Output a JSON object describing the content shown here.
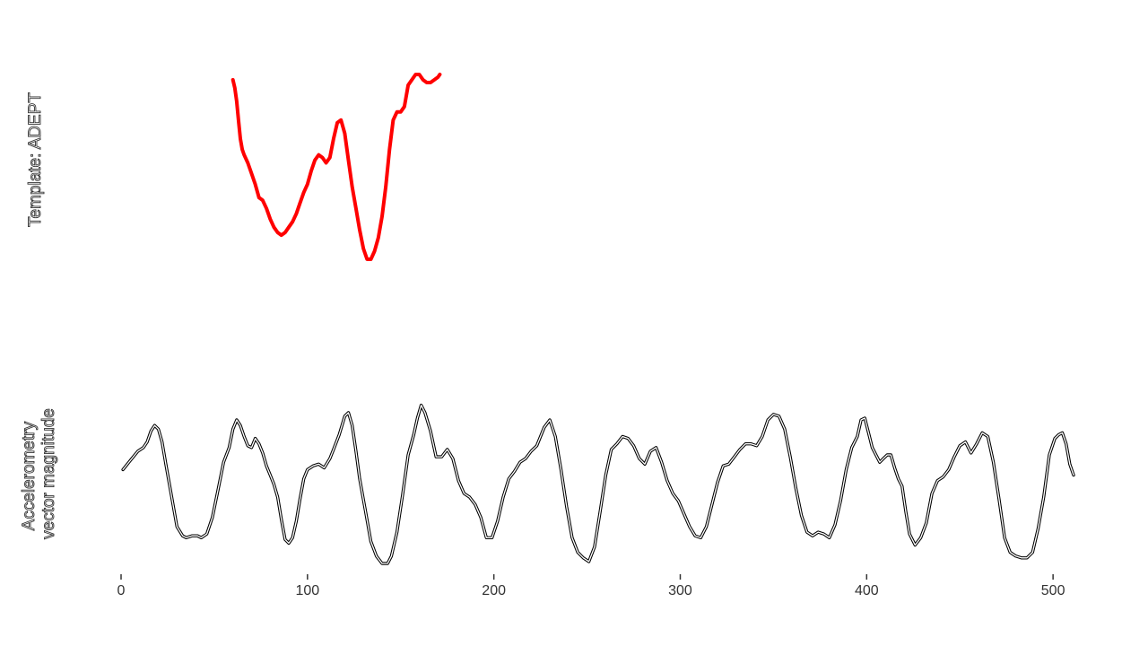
{
  "chart_data": [
    {
      "type": "line",
      "ylabel": "Template: ADEPT",
      "color": "#ff0000",
      "x": [
        60,
        61,
        62,
        63,
        64,
        65,
        66,
        68,
        70,
        72,
        74,
        76,
        78,
        80,
        82,
        84,
        86,
        88,
        90,
        92,
        94,
        96,
        98,
        100,
        102,
        104,
        106,
        108,
        110,
        112,
        114,
        116,
        118,
        120,
        122,
        124,
        126,
        128,
        130,
        132,
        134,
        136,
        138,
        140,
        142,
        144,
        146,
        148,
        150,
        152,
        154,
        156,
        158,
        160,
        162,
        164,
        166,
        168,
        170,
        171
      ],
      "y": [
        1.0,
        0.97,
        0.92,
        0.85,
        0.78,
        0.74,
        0.72,
        0.69,
        0.65,
        0.61,
        0.56,
        0.55,
        0.52,
        0.48,
        0.45,
        0.43,
        0.42,
        0.43,
        0.45,
        0.47,
        0.5,
        0.54,
        0.58,
        0.61,
        0.66,
        0.7,
        0.72,
        0.71,
        0.69,
        0.71,
        0.78,
        0.84,
        0.85,
        0.8,
        0.7,
        0.6,
        0.52,
        0.44,
        0.37,
        0.33,
        0.33,
        0.36,
        0.41,
        0.49,
        0.6,
        0.74,
        0.85,
        0.88,
        0.88,
        0.9,
        0.98,
        1.0,
        1.02,
        1.02,
        1.0,
        0.99,
        0.99,
        1.0,
        1.01,
        1.02
      ]
    },
    {
      "type": "line",
      "ylabel": "Accelerometry\nvector magnitude",
      "color": "#000000",
      "xlim": [
        0,
        511
      ],
      "xticks": [
        0,
        100,
        200,
        300,
        400,
        500
      ],
      "x": [
        1,
        5,
        9,
        12,
        14,
        16,
        18,
        20,
        22,
        24,
        27,
        30,
        33,
        35,
        38,
        41,
        43,
        46,
        49,
        52,
        55,
        58,
        60,
        62,
        64,
        66,
        68,
        70,
        72,
        74,
        76,
        78,
        80,
        82,
        84,
        86,
        88,
        90,
        92,
        94,
        96,
        98,
        100,
        103,
        106,
        109,
        112,
        114,
        117,
        120,
        122,
        124,
        126,
        128,
        131,
        134,
        137,
        140,
        143,
        145,
        148,
        151,
        154,
        157,
        159,
        161,
        163,
        166,
        169,
        172,
        175,
        178,
        181,
        184,
        187,
        190,
        193,
        196,
        199,
        202,
        205,
        208,
        211,
        214,
        217,
        220,
        223,
        227,
        230,
        233,
        236,
        239,
        242,
        245,
        248,
        251,
        254,
        257,
        260,
        263,
        266,
        269,
        272,
        275,
        278,
        281,
        284,
        287,
        290,
        293,
        296,
        299,
        302,
        305,
        308,
        311,
        314,
        317,
        320,
        323,
        326,
        329,
        332,
        335,
        338,
        341,
        344,
        347,
        350,
        353,
        356,
        359,
        362,
        365,
        368,
        371,
        374,
        377,
        380,
        383,
        386,
        389,
        392,
        395,
        397,
        399,
        401,
        403,
        405,
        407,
        409,
        411,
        413,
        415,
        417,
        419,
        421,
        423,
        426,
        429,
        432,
        435,
        438,
        441,
        444,
        447,
        450,
        453,
        456,
        459,
        462,
        465,
        468,
        471,
        474,
        477,
        480,
        483,
        486,
        489,
        492,
        495,
        498,
        501,
        503,
        505,
        507,
        509,
        511
      ],
      "y": [
        0.52,
        0.57,
        0.62,
        0.64,
        0.67,
        0.73,
        0.76,
        0.74,
        0.67,
        0.55,
        0.38,
        0.21,
        0.16,
        0.15,
        0.16,
        0.16,
        0.15,
        0.17,
        0.26,
        0.41,
        0.56,
        0.64,
        0.74,
        0.79,
        0.76,
        0.7,
        0.65,
        0.64,
        0.69,
        0.66,
        0.61,
        0.54,
        0.49,
        0.44,
        0.37,
        0.25,
        0.14,
        0.12,
        0.15,
        0.24,
        0.36,
        0.47,
        0.52,
        0.54,
        0.55,
        0.53,
        0.58,
        0.63,
        0.71,
        0.81,
        0.83,
        0.76,
        0.62,
        0.47,
        0.3,
        0.13,
        0.05,
        0.01,
        0.01,
        0.05,
        0.18,
        0.38,
        0.6,
        0.71,
        0.8,
        0.87,
        0.83,
        0.73,
        0.59,
        0.59,
        0.63,
        0.58,
        0.46,
        0.39,
        0.37,
        0.33,
        0.26,
        0.15,
        0.15,
        0.24,
        0.37,
        0.47,
        0.51,
        0.56,
        0.58,
        0.62,
        0.65,
        0.75,
        0.79,
        0.7,
        0.52,
        0.32,
        0.15,
        0.07,
        0.04,
        0.02,
        0.1,
        0.29,
        0.49,
        0.63,
        0.66,
        0.7,
        0.69,
        0.65,
        0.58,
        0.55,
        0.62,
        0.64,
        0.56,
        0.46,
        0.39,
        0.35,
        0.28,
        0.21,
        0.16,
        0.15,
        0.21,
        0.33,
        0.45,
        0.54,
        0.55,
        0.59,
        0.63,
        0.66,
        0.66,
        0.65,
        0.7,
        0.79,
        0.82,
        0.81,
        0.74,
        0.59,
        0.42,
        0.27,
        0.18,
        0.16,
        0.18,
        0.17,
        0.15,
        0.22,
        0.35,
        0.52,
        0.64,
        0.7,
        0.79,
        0.8,
        0.72,
        0.64,
        0.6,
        0.56,
        0.58,
        0.6,
        0.6,
        0.53,
        0.47,
        0.43,
        0.29,
        0.17,
        0.11,
        0.15,
        0.23,
        0.39,
        0.46,
        0.48,
        0.52,
        0.59,
        0.65,
        0.67,
        0.61,
        0.66,
        0.72,
        0.7,
        0.56,
        0.36,
        0.15,
        0.07,
        0.05,
        0.04,
        0.04,
        0.07,
        0.2,
        0.37,
        0.6,
        0.69,
        0.71,
        0.72,
        0.66,
        0.55,
        0.49
      ]
    }
  ]
}
